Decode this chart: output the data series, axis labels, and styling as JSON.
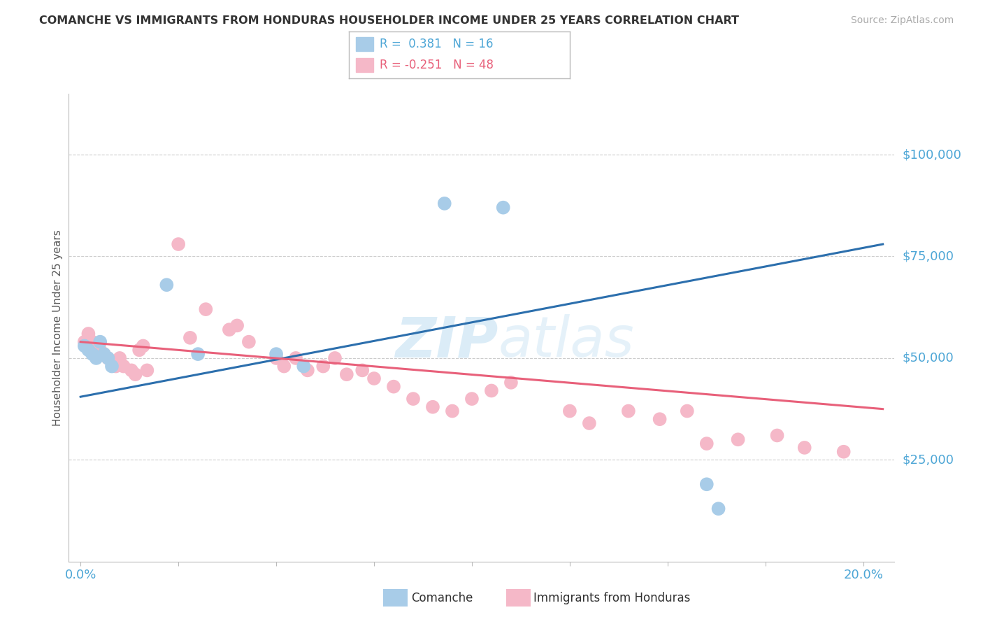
{
  "title": "COMANCHE VS IMMIGRANTS FROM HONDURAS HOUSEHOLDER INCOME UNDER 25 YEARS CORRELATION CHART",
  "source": "Source: ZipAtlas.com",
  "ylabel": "Householder Income Under 25 years",
  "ylim": [
    0,
    115000
  ],
  "xlim": [
    -0.003,
    0.208
  ],
  "yticks": [
    25000,
    50000,
    75000,
    100000
  ],
  "ytick_labels": [
    "$25,000",
    "$50,000",
    "$75,000",
    "$100,000"
  ],
  "blue_color": "#a8cce8",
  "pink_color": "#f5b8c8",
  "blue_line_color": "#2c6fad",
  "pink_line_color": "#e8607a",
  "axis_color": "#4da6d6",
  "text_color_blue": "#4da6d6",
  "text_label_color": "#555555",
  "watermark_color": "#cce5f5",
  "comanche_x": [
    0.001,
    0.002,
    0.003,
    0.004,
    0.005,
    0.006,
    0.007,
    0.008,
    0.022,
    0.03,
    0.05,
    0.057,
    0.093,
    0.108,
    0.16,
    0.163
  ],
  "comanche_y": [
    53000,
    52000,
    51000,
    50000,
    54000,
    51000,
    50000,
    48000,
    68000,
    51000,
    51000,
    48000,
    88000,
    87000,
    19000,
    13000
  ],
  "honduras_x": [
    0.001,
    0.002,
    0.003,
    0.004,
    0.005,
    0.006,
    0.007,
    0.008,
    0.009,
    0.01,
    0.011,
    0.013,
    0.014,
    0.015,
    0.016,
    0.017,
    0.025,
    0.028,
    0.032,
    0.038,
    0.04,
    0.043,
    0.05,
    0.052,
    0.055,
    0.058,
    0.062,
    0.065,
    0.068,
    0.072,
    0.075,
    0.08,
    0.085,
    0.09,
    0.095,
    0.1,
    0.105,
    0.11,
    0.125,
    0.13,
    0.14,
    0.148,
    0.155,
    0.16,
    0.168,
    0.178,
    0.185,
    0.195
  ],
  "honduras_y": [
    54000,
    56000,
    54000,
    53000,
    52000,
    51000,
    50000,
    49000,
    48000,
    50000,
    48000,
    47000,
    46000,
    52000,
    53000,
    47000,
    78000,
    55000,
    62000,
    57000,
    58000,
    54000,
    50000,
    48000,
    50000,
    47000,
    48000,
    50000,
    46000,
    47000,
    45000,
    43000,
    40000,
    38000,
    37000,
    40000,
    42000,
    44000,
    37000,
    34000,
    37000,
    35000,
    37000,
    29000,
    30000,
    31000,
    28000,
    27000
  ],
  "blue_line_x": [
    0.0,
    0.205
  ],
  "blue_line_y": [
    40500,
    78000
  ],
  "pink_line_x": [
    0.0,
    0.205
  ],
  "pink_line_y": [
    54000,
    37500
  ],
  "legend_r1_val": "0.381",
  "legend_n1_val": "16",
  "legend_r2_val": "-0.251",
  "legend_n2_val": "48"
}
